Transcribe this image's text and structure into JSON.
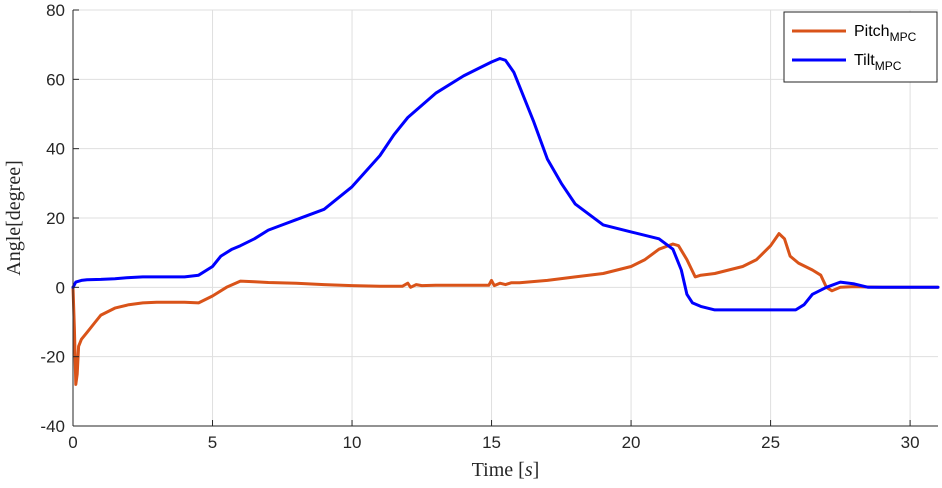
{
  "chart_data": {
    "type": "line",
    "xlabel": "Time",
    "xunit": "s",
    "ylabel": "Angle[degree]",
    "xlim": [
      0,
      31
    ],
    "ylim": [
      -40,
      80
    ],
    "xticks": [
      0,
      5,
      10,
      15,
      20,
      25,
      30
    ],
    "yticks": [
      -40,
      -20,
      0,
      20,
      40,
      60,
      80
    ],
    "grid": true,
    "legend_position": "top-right",
    "series": [
      {
        "name": "Pitch",
        "subscript": "MPC",
        "color": "#D95319",
        "x": [
          0,
          0.05,
          0.1,
          0.15,
          0.2,
          0.3,
          0.5,
          0.8,
          1,
          1.5,
          2,
          2.5,
          3,
          3.5,
          4,
          4.5,
          5,
          5.5,
          6,
          6.5,
          7,
          8,
          9,
          10,
          11,
          11.8,
          12,
          12.1,
          12.3,
          12.5,
          13,
          14,
          14.9,
          15,
          15.1,
          15.3,
          15.5,
          15.7,
          16,
          17,
          18,
          19,
          20,
          20.5,
          21,
          21.5,
          21.7,
          22,
          22.3,
          22.5,
          23,
          23.5,
          24,
          24.5,
          25,
          25.3,
          25.5,
          25.7,
          26,
          26.5,
          26.8,
          27,
          27.2,
          27.5,
          28,
          28.5,
          29,
          30,
          31
        ],
        "y": [
          0,
          -12,
          -28,
          -25,
          -17,
          -15,
          -13,
          -10,
          -8,
          -6,
          -5,
          -4.5,
          -4.3,
          -4.3,
          -4.3,
          -4.5,
          -2.5,
          0,
          1.8,
          1.6,
          1.4,
          1.2,
          0.8,
          0.5,
          0.3,
          0.3,
          1.2,
          0,
          0.8,
          0.5,
          0.6,
          0.6,
          0.6,
          2,
          0.5,
          1.2,
          0.8,
          1.3,
          1.3,
          2,
          3,
          4,
          6,
          8,
          11,
          12.5,
          12,
          8,
          3,
          3.5,
          4,
          5,
          6,
          8,
          12,
          15.5,
          14,
          9,
          7,
          5,
          3.5,
          0,
          -1,
          0,
          0.2,
          0.1,
          0,
          0,
          0
        ]
      },
      {
        "name": "Tilt",
        "subscript": "MPC",
        "color": "#0000FF",
        "x": [
          0,
          0.1,
          0.3,
          0.5,
          1,
          1.5,
          2,
          2.5,
          3,
          3.5,
          4,
          4.5,
          5,
          5.3,
          5.7,
          6,
          6.5,
          7,
          7.5,
          8,
          9,
          10,
          11,
          11.5,
          12,
          13,
          14,
          14.5,
          15,
          15.3,
          15.5,
          15.8,
          16,
          16.5,
          17,
          17.5,
          18,
          19,
          20,
          21,
          21.5,
          21.8,
          22,
          22.2,
          22.5,
          23,
          24,
          25,
          25.5,
          25.9,
          26.2,
          26.5,
          27,
          27.5,
          28,
          28.5,
          29,
          30,
          31
        ],
        "y": [
          0,
          1.5,
          2,
          2.2,
          2.3,
          2.5,
          2.8,
          3,
          3,
          3,
          3,
          3.5,
          6,
          9,
          11,
          12,
          14,
          16.5,
          18,
          19.5,
          22.5,
          29,
          38,
          44,
          49,
          56,
          61,
          63,
          65,
          66,
          65.5,
          62,
          58,
          48,
          37,
          30,
          24,
          18,
          16,
          14,
          11,
          5,
          -2,
          -4.5,
          -5.5,
          -6.5,
          -6.5,
          -6.5,
          -6.5,
          -6.5,
          -5,
          -2,
          0,
          1.5,
          1,
          0,
          0,
          0,
          0
        ]
      }
    ]
  }
}
